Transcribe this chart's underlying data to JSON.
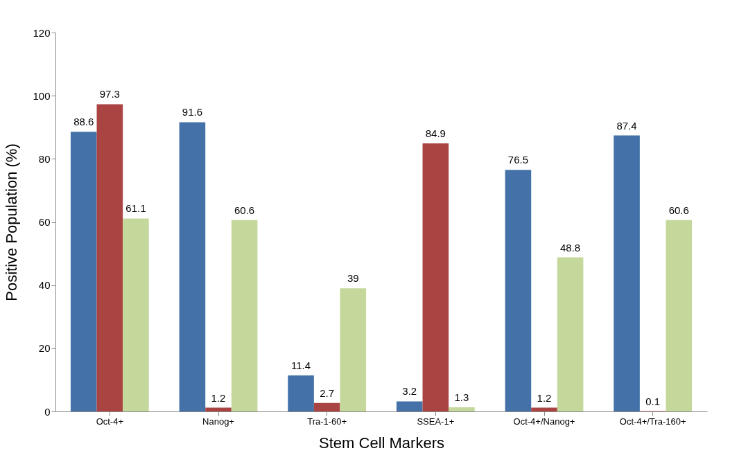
{
  "chart_data": {
    "type": "bar",
    "xlabel": "Stem Cell Markers",
    "ylabel": "Positive Population (%)",
    "categories": [
      "Oct-4+",
      "Nanog+",
      "Tra-1-60+",
      "SSEA-1+",
      "Oct-4+/Nanog+",
      "Oct-4+/Tra-160+"
    ],
    "series": [
      {
        "color": "#4472a8",
        "values": [
          88.6,
          91.6,
          11.4,
          3.2,
          76.5,
          87.4
        ]
      },
      {
        "color": "#a94442",
        "values": [
          97.3,
          1.2,
          2.7,
          84.9,
          1.2,
          0.1
        ]
      },
      {
        "color": "#c4d89b",
        "values": [
          61.1,
          60.6,
          39,
          1.3,
          48.8,
          60.6
        ]
      }
    ],
    "ylim": [
      0,
      120
    ],
    "yticks": [
      0,
      20,
      40,
      60,
      80,
      100,
      120
    ],
    "data_labels": true,
    "grid": false,
    "legend": false
  }
}
